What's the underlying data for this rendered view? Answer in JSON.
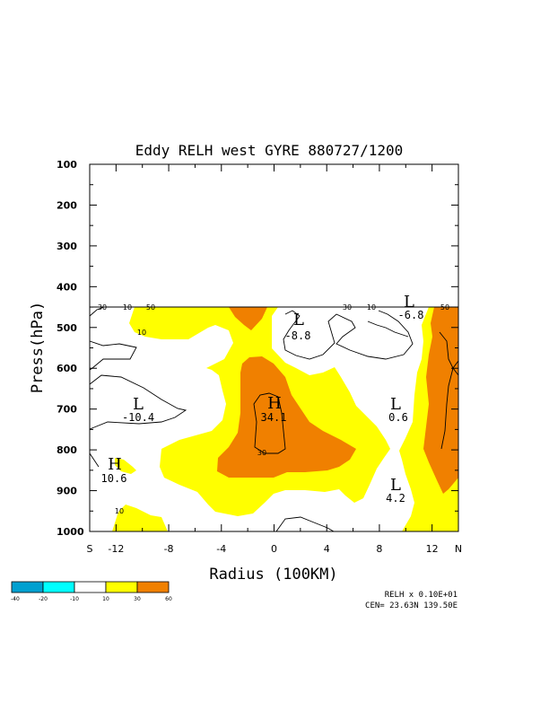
{
  "chart_data": {
    "type": "contour",
    "title": "Eddy RELH west GYRE 880727/1200",
    "xlabel": "Radius (100KM)",
    "ylabel": "Press(hPa)",
    "xlim": [
      -14,
      14
    ],
    "ylim": [
      1000,
      100
    ],
    "x_ticks": [
      "S",
      "-12",
      "-8",
      "-4",
      "0",
      "4",
      "8",
      "12",
      "N"
    ],
    "y_ticks": [
      "100",
      "200",
      "300",
      "400",
      "500",
      "600",
      "700",
      "800",
      "900",
      "1000"
    ],
    "data_top_pressure": 450,
    "fill_colors": {
      "lt_m40": "#00a0d0",
      "m40_m20": "#00ffff",
      "m20_m10": "#ffffff",
      "m10_10": "#ffffff",
      "10_30": "#ffff00",
      "30_60": "#f08000"
    },
    "legend": {
      "levels": [
        "-40",
        "-20",
        "-10",
        "10",
        "30",
        "60"
      ]
    },
    "contour_labels": [
      "30",
      "10",
      "50",
      "10",
      "30",
      "10",
      "50",
      "10",
      "30"
    ],
    "extrema": [
      {
        "type": "H",
        "value": "34.1",
        "x": 0,
        "p": 700
      },
      {
        "type": "H",
        "value": "10.6",
        "x": -12.5,
        "p": 855
      },
      {
        "type": "L",
        "value": "-10.4",
        "x": -10,
        "p": 690
      },
      {
        "type": "L",
        "value": "-8.8",
        "x": 2,
        "p": 520
      },
      {
        "type": "L",
        "value": "-6.8",
        "x": 11,
        "p": 450
      },
      {
        "type": "L",
        "value": "0.6",
        "x": 9.5,
        "p": 690
      },
      {
        "type": "L",
        "value": "4.2",
        "x": 9.5,
        "p": 910
      }
    ],
    "footer": {
      "scale": "RELH x  0.10E+01",
      "center": "CEN= 23.63N  139.50E"
    },
    "grid": false
  }
}
